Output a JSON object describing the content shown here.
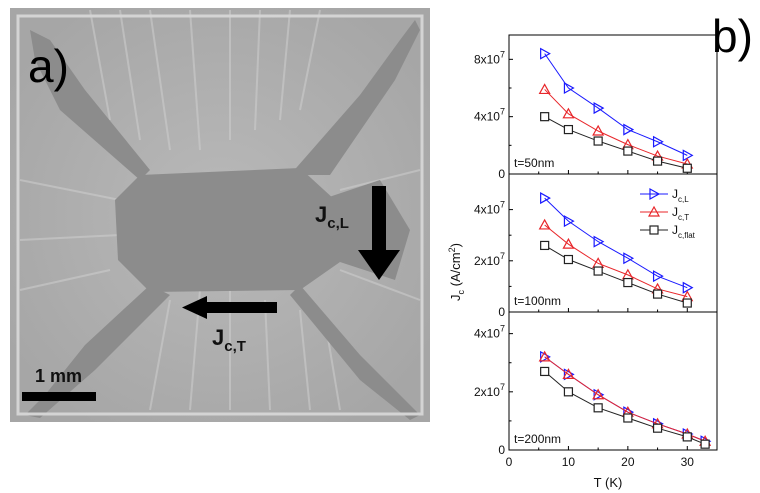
{
  "panel_a": {
    "letter": "a)",
    "scale_bar_label": "1 mm",
    "arrow_L": {
      "main": "J",
      "sub": "c,L"
    },
    "arrow_T": {
      "main": "J",
      "sub": "c,T"
    }
  },
  "panel_b": {
    "letter": "b)",
    "xlabel": "T (K)",
    "ylabel": {
      "main": "J",
      "sub": "c",
      "rest": " (A/cm",
      "sup": "2",
      "end": ")"
    }
  },
  "chart_data": [
    {
      "type": "line",
      "panel_label": "t=50nm",
      "xlim": [
        0,
        35
      ],
      "ylim": [
        0,
        90000000
      ],
      "ytick_labels": [
        {
          "value": 0,
          "mant": "0",
          "exp": ""
        },
        {
          "value": 40000000,
          "mant": "4x10",
          "exp": "7"
        },
        {
          "value": 80000000,
          "mant": "8x10",
          "exp": "7"
        }
      ],
      "series": [
        {
          "name": "J_c,L",
          "color": "#1a1aff",
          "marker": "triangle-right",
          "points": [
            [
              6,
              84000000
            ],
            [
              10,
              60000000
            ],
            [
              15,
              46000000
            ],
            [
              20,
              31000000
            ],
            [
              25,
              22500000
            ],
            [
              30,
              13000000
            ]
          ]
        },
        {
          "name": "J_c,T",
          "color": "#e8262a",
          "marker": "triangle-up",
          "points": [
            [
              6,
              59000000
            ],
            [
              10,
              42000000
            ],
            [
              15,
              30000000
            ],
            [
              20,
              20500000
            ],
            [
              25,
              12500000
            ],
            [
              30,
              7000000
            ]
          ]
        },
        {
          "name": "J_c,flat",
          "color": "#222222",
          "marker": "square",
          "points": [
            [
              6,
              40000000
            ],
            [
              10,
              31000000
            ],
            [
              15,
              23000000
            ],
            [
              20,
              16000000
            ],
            [
              25,
              9000000
            ],
            [
              30,
              4000000
            ]
          ]
        }
      ]
    },
    {
      "type": "line",
      "panel_label": "t=100nm",
      "xlim": [
        0,
        35
      ],
      "ylim": [
        0,
        50000000
      ],
      "ytick_labels": [
        {
          "value": 0,
          "mant": "0",
          "exp": ""
        },
        {
          "value": 20000000,
          "mant": "2x10",
          "exp": "7"
        },
        {
          "value": 40000000,
          "mant": "4x10",
          "exp": "7"
        }
      ],
      "legend": {
        "position": "top-right"
      },
      "series": [
        {
          "name": "J_c,L",
          "label_main": "J",
          "label_sub": "c,L",
          "color": "#1a1aff",
          "marker": "triangle-right",
          "points": [
            [
              6,
              44500000
            ],
            [
              10,
              35500000
            ],
            [
              15,
              27500000
            ],
            [
              20,
              21000000
            ],
            [
              25,
              14000000
            ],
            [
              30,
              9500000
            ]
          ]
        },
        {
          "name": "J_c,T",
          "label_main": "J",
          "label_sub": "c,T",
          "color": "#e8262a",
          "marker": "triangle-up",
          "points": [
            [
              6,
              34000000
            ],
            [
              10,
              26500000
            ],
            [
              15,
              19000000
            ],
            [
              20,
              14500000
            ],
            [
              25,
              9000000
            ],
            [
              30,
              6000000
            ]
          ]
        },
        {
          "name": "J_c,flat",
          "label_main": "J",
          "label_sub": "c,flat",
          "color": "#222222",
          "marker": "square",
          "points": [
            [
              6,
              26000000
            ],
            [
              10,
              20500000
            ],
            [
              15,
              16000000
            ],
            [
              20,
              11500000
            ],
            [
              25,
              7000000
            ],
            [
              30,
              3500000
            ]
          ]
        }
      ]
    },
    {
      "type": "line",
      "panel_label": "t=200nm",
      "xlim": [
        0,
        35
      ],
      "ylim": [
        0,
        44000000
      ],
      "xticks": [
        0,
        10,
        20,
        30
      ],
      "ytick_labels": [
        {
          "value": 0,
          "mant": "0",
          "exp": ""
        },
        {
          "value": 20000000,
          "mant": "2x10",
          "exp": "7"
        },
        {
          "value": 40000000,
          "mant": "4x10",
          "exp": "7"
        }
      ],
      "series": [
        {
          "name": "J_c,L",
          "color": "#1a1aff",
          "marker": "triangle-right",
          "points": [
            [
              6,
              32000000
            ],
            [
              10,
              26000000
            ],
            [
              15,
              19000000
            ],
            [
              20,
              13000000
            ],
            [
              25,
              9000000
            ],
            [
              30,
              5500000
            ],
            [
              33,
              3000000
            ]
          ]
        },
        {
          "name": "J_c,T",
          "color": "#e8262a",
          "marker": "triangle-up",
          "points": [
            [
              6,
              32000000
            ],
            [
              10,
              26000000
            ],
            [
              15,
              19000000
            ],
            [
              20,
              13000000
            ],
            [
              25,
              9000000
            ],
            [
              30,
              5500000
            ],
            [
              33,
              3000000
            ]
          ]
        },
        {
          "name": "J_c,flat",
          "color": "#222222",
          "marker": "square",
          "points": [
            [
              6,
              27000000
            ],
            [
              10,
              20000000
            ],
            [
              15,
              14500000
            ],
            [
              20,
              11000000
            ],
            [
              25,
              7500000
            ],
            [
              30,
              4500000
            ],
            [
              33,
              2000000
            ]
          ]
        }
      ]
    }
  ]
}
